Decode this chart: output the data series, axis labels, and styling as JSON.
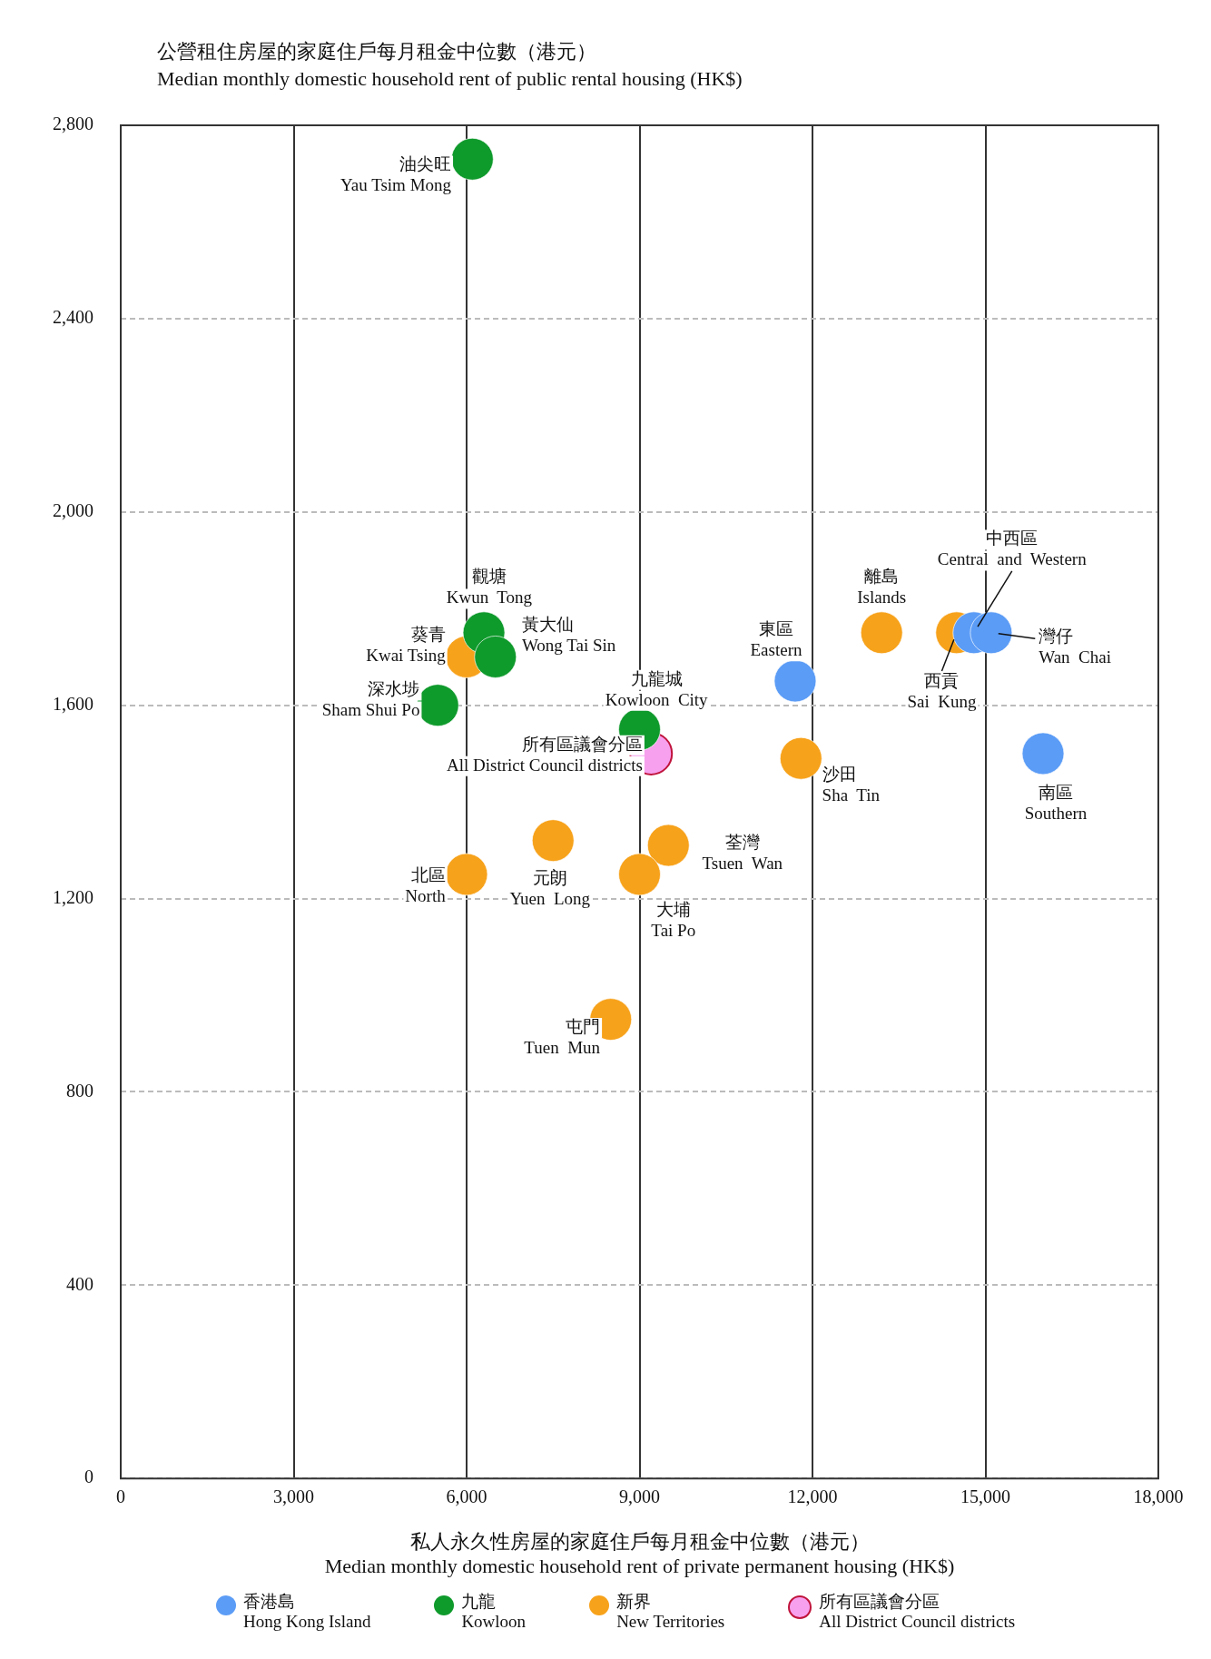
{
  "chart_data": {
    "type": "scatter",
    "ylabel": "公營租住房屋的家庭住戶每月租金中位數（港元）\nMedian monthly domestic household rent of public rental housing (HK$)",
    "xlabel": "私人永久性房屋的家庭住戶每月租金中位數（港元）\nMedian monthly domestic household rent of private permanent housing (HK$)",
    "xlim": [
      0,
      18000
    ],
    "xticks": [
      {
        "value": 0,
        "label": "0"
      },
      {
        "value": 3000,
        "label": "3,000"
      },
      {
        "value": 6000,
        "label": "6,000"
      },
      {
        "value": 9000,
        "label": "9,000"
      },
      {
        "value": 12000,
        "label": "12,000"
      },
      {
        "value": 15000,
        "label": "15,000"
      },
      {
        "value": 18000,
        "label": "18,000"
      }
    ],
    "ylim": [
      0,
      2800
    ],
    "yticks": [
      {
        "value": 0,
        "label": "0"
      },
      {
        "value": 400,
        "label": "400"
      },
      {
        "value": 800,
        "label": "800"
      },
      {
        "value": 1200,
        "label": "1,200"
      },
      {
        "value": 1600,
        "label": "1,600"
      },
      {
        "value": 2000,
        "label": "2,000"
      },
      {
        "value": 2400,
        "label": "2,400"
      },
      {
        "value": 2800,
        "label": "2,800"
      }
    ],
    "grid": true,
    "legend": "bottom",
    "marker": "circle",
    "series": [
      {
        "name": "香港島\nHong  Kong  Island",
        "color": "#5b9cf6",
        "x": [
          11700,
          14800,
          15100,
          16000
        ],
        "values": [
          1650,
          1750,
          1750,
          1500
        ]
      },
      {
        "name": "九龍\nKowloon",
        "color": "#0f9a2c",
        "x": [
          6100,
          6300,
          6500,
          5500,
          9000
        ],
        "values": [
          2730,
          1750,
          1700,
          1600,
          1550
        ]
      },
      {
        "name": "新界\nNew  Territories",
        "color": "#f7a21b",
        "x": [
          6000,
          13200,
          14500,
          11800,
          9500,
          7500,
          6000,
          9000,
          8500
        ],
        "values": [
          1700,
          1750,
          1750,
          1490,
          1310,
          1320,
          1250,
          1250,
          950
        ]
      },
      {
        "name": "所有區議會分區\nAll District Council districts",
        "color": "#f7a0ee",
        "x": [
          9200
        ],
        "values": [
          1500
        ]
      }
    ],
    "annotations": [
      {
        "text": "油尖旺\nYau Tsim Mong",
        "x": 6100,
        "y": 2730
      },
      {
        "text": "觀塘\nKwun  Tong",
        "x": 6300,
        "y": 1750
      },
      {
        "text": "黃大仙\nWong Tai Sin",
        "x": 6500,
        "y": 1700
      },
      {
        "text": "葵青\nKwai Tsing",
        "x": 6000,
        "y": 1700
      },
      {
        "text": "深水埗\nSham Shui Po",
        "x": 5500,
        "y": 1600
      },
      {
        "text": "九龍城\nKowloon  City",
        "x": 9000,
        "y": 1550
      },
      {
        "text": "所有區議會分區\nAll District Council districts",
        "x": 9200,
        "y": 1500
      },
      {
        "text": "東區\nEastern",
        "x": 11700,
        "y": 1650
      },
      {
        "text": "離島\nIslands",
        "x": 13200,
        "y": 1750
      },
      {
        "text": "西貢\nSai  Kung",
        "x": 14500,
        "y": 1750
      },
      {
        "text": "中西區\nCentral  and  Western",
        "x": 14800,
        "y": 1750
      },
      {
        "text": "灣仔\nWan  Chai",
        "x": 15100,
        "y": 1750
      },
      {
        "text": "南區\nSouthern",
        "x": 16000,
        "y": 1500
      },
      {
        "text": "沙田\nSha  Tin",
        "x": 11800,
        "y": 1490
      },
      {
        "text": "荃灣\nTsuen  Wan",
        "x": 9500,
        "y": 1310
      },
      {
        "text": "元朗\nYuen  Long",
        "x": 7500,
        "y": 1320
      },
      {
        "text": "北區\nNorth",
        "x": 6000,
        "y": 1250
      },
      {
        "text": "大埔\nTai Po",
        "x": 9000,
        "y": 1250
      },
      {
        "text": "屯門\nTuen  Mun",
        "x": 8500,
        "y": 950
      }
    ]
  }
}
